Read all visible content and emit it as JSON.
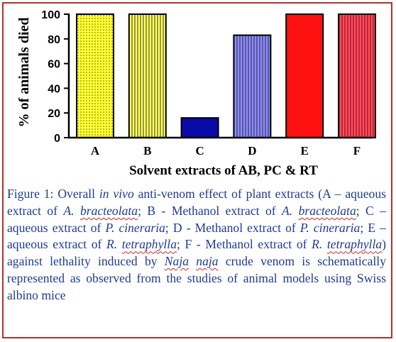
{
  "chart_data": {
    "type": "bar",
    "categories": [
      "A",
      "B",
      "C",
      "D",
      "E",
      "F"
    ],
    "values": [
      100,
      100,
      16,
      83,
      100,
      100
    ],
    "ylabel": "% of animals died",
    "xlabel": "Solvent extracts of AB, PC & RT",
    "ylim": [
      0,
      100
    ],
    "yticks": [
      0,
      20,
      40,
      60,
      80,
      100
    ],
    "grid": false,
    "bar_colors": [
      "#ffff33",
      "#ffff66",
      "#0a0aa8",
      "#8f8ff0",
      "#ff1010",
      "#ff4d5e"
    ],
    "bar_patterns": [
      "dots",
      "vertical-lines",
      "solid",
      "vertical-lines",
      "solid",
      "vertical-lines"
    ]
  },
  "caption": {
    "p1": "Figure 1: Overall ",
    "p2": "in vivo",
    "p3": " anti-venom effect of plant extracts (A – aqueous extract of ",
    "p4": "A. ",
    "p5": "bracteolata",
    "p6": "; B - Methanol extract of ",
    "p7": "A. ",
    "p8": "bracteolata",
    "p9": "; C – aqueous extract of ",
    "p10": "P. cineraria",
    "p11": "; D - Methanol extract of ",
    "p12": "P. cineraria",
    "p13": "; E – aqueous extract of ",
    "p14": "R. ",
    "p15": "tetraphylla",
    "p16": "; F - Methanol extract of ",
    "p17": "R. ",
    "p18": "tetraphylla",
    "p19": ") against lethality induced by ",
    "p20": "Naja",
    "p21": " ",
    "p22": "naja",
    "p23": " crude venom is schematically represented as observed from the studies of animal models using Swiss albino mice"
  }
}
